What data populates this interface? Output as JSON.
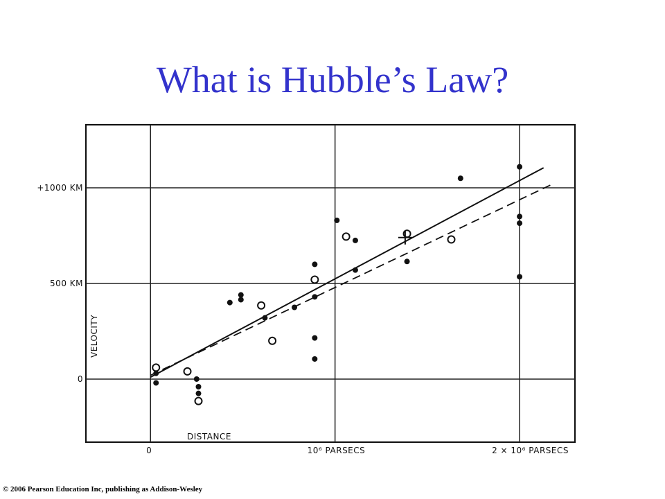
{
  "slide": {
    "title": "What is Hubble’s Law?",
    "copyright": "© 2006 Pearson Education Inc, publishing as Addison-Wesley",
    "title_color": "#3333cc"
  },
  "chart_data": {
    "type": "scatter",
    "title": "",
    "xlabel": "DISTANCE",
    "ylabel": "VELOCITY",
    "xlim": [
      -0.35,
      2.3
    ],
    "ylim": [
      -330,
      1330
    ],
    "x_gridlines": [
      0,
      1,
      2
    ],
    "y_gridlines": [
      0,
      500,
      1000
    ],
    "x_tick_labels": [
      {
        "value": 0,
        "label": "0"
      },
      {
        "value": 1,
        "label": "10⁶ PARSECS"
      },
      {
        "value": 2,
        "label": "2 × 10⁶ PARSECS"
      }
    ],
    "y_tick_labels": [
      {
        "value": 0,
        "label": "0"
      },
      {
        "value": 500,
        "label": "500 KM"
      },
      {
        "value": 1000,
        "label": "+1000 KM"
      }
    ],
    "grid": true,
    "series": [
      {
        "marker": "filled-circle",
        "points": [
          [
            0.03,
            30
          ],
          [
            0.03,
            -20
          ],
          [
            0.25,
            0
          ],
          [
            0.26,
            -40
          ],
          [
            0.26,
            -75
          ],
          [
            0.43,
            400
          ],
          [
            0.49,
            440
          ],
          [
            0.49,
            415
          ],
          [
            0.62,
            320
          ],
          [
            0.78,
            375
          ],
          [
            0.89,
            600
          ],
          [
            0.89,
            430
          ],
          [
            0.89,
            215
          ],
          [
            0.89,
            105
          ],
          [
            1.01,
            830
          ],
          [
            1.11,
            725
          ],
          [
            1.11,
            570
          ],
          [
            1.39,
            615
          ],
          [
            1.68,
            1050
          ],
          [
            2.0,
            1110
          ],
          [
            2.0,
            850
          ],
          [
            2.0,
            815
          ],
          [
            2.0,
            535
          ]
        ]
      },
      {
        "marker": "open-circle",
        "points": [
          [
            0.03,
            60
          ],
          [
            0.2,
            40
          ],
          [
            0.26,
            -115
          ],
          [
            0.6,
            385
          ],
          [
            0.66,
            200
          ],
          [
            0.89,
            520
          ],
          [
            1.06,
            745
          ],
          [
            1.39,
            760
          ],
          [
            1.63,
            730
          ]
        ]
      }
    ],
    "special_point": {
      "marker": "cross",
      "x": 1.38,
      "y": 740
    },
    "fit_lines": [
      {
        "style": "solid",
        "x": [
          0.0,
          2.13
        ],
        "y": [
          10,
          1105
        ]
      },
      {
        "style": "dashed",
        "x": [
          0.0,
          2.19
        ],
        "y": [
          20,
          1025
        ]
      }
    ]
  }
}
